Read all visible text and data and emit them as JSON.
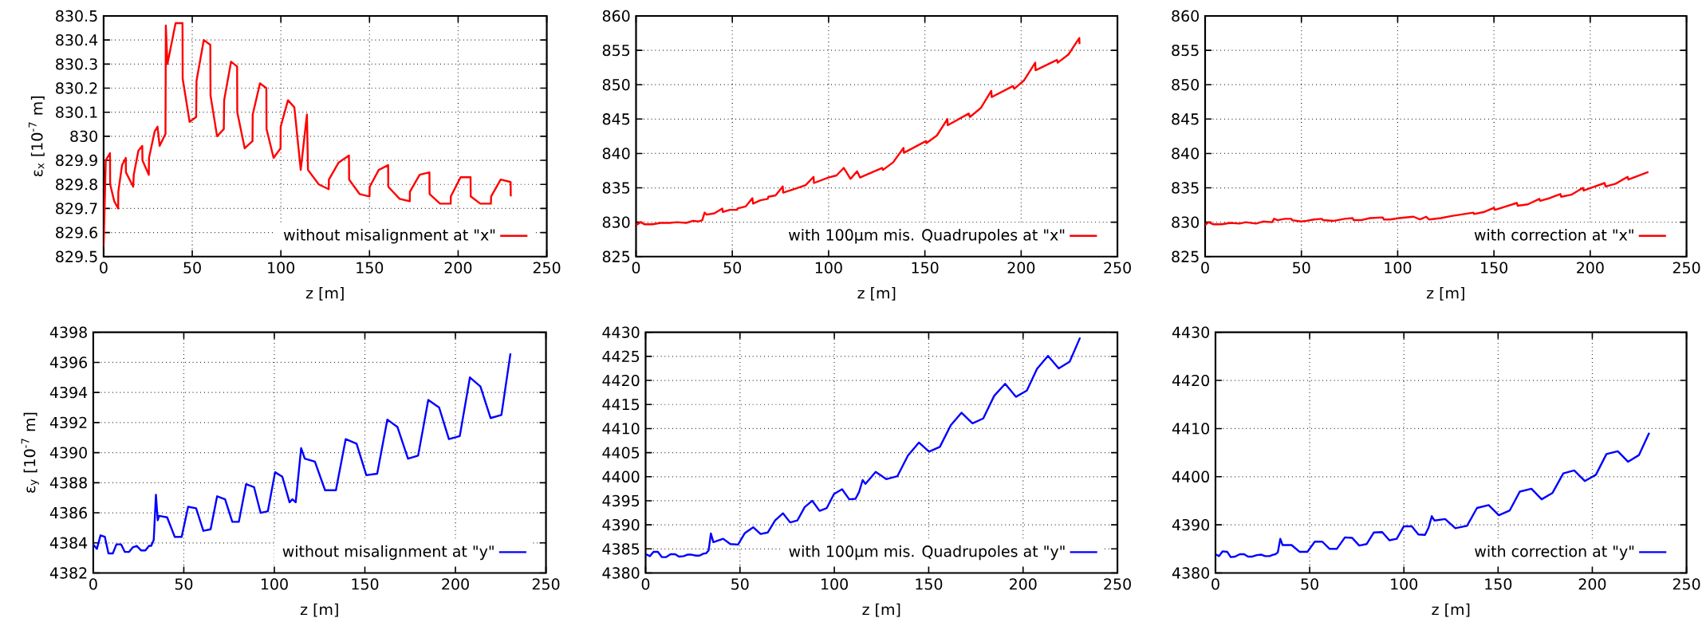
{
  "chart_data": [
    {
      "type": "line",
      "xlabel": "z [m]",
      "ylabel": "ε$_{x}$ [10$^{-7}$ m]",
      "legend": "bottom right",
      "grid": true,
      "xlim": [
        0,
        250
      ],
      "xticks": [
        0,
        50,
        100,
        150,
        200,
        250
      ],
      "ylim": [
        829.5,
        830.5
      ],
      "yticks": [
        829.5,
        829.6,
        829.7,
        829.8,
        829.9,
        830,
        830.1,
        830.2,
        830.3,
        830.4,
        830.5
      ],
      "series": [
        {
          "name": "without misalignment at \"x\"",
          "color": "#ff0000",
          "x": [
            0,
            1.2,
            2,
            3.6,
            3.7,
            6,
            8.2,
            8.3,
            10.4,
            12.5,
            12.6,
            16.7,
            17,
            19.6,
            21.8,
            21.9,
            25.5,
            25.6,
            28.8,
            30.4,
            31.6,
            34.9,
            35.1,
            36,
            40.6,
            44.5,
            44.6,
            48.5,
            52.2,
            52.4,
            56.5,
            60.2,
            60.3,
            64,
            67.8,
            68,
            71.9,
            75.3,
            75.4,
            79.6,
            84,
            84.1,
            88.2,
            91.8,
            91.9,
            95.9,
            99.8,
            99.9,
            104,
            107.6,
            111.2,
            114.7,
            115.3,
            121.4,
            127,
            127.1,
            132.5,
            138.4,
            138.5,
            144.4,
            150,
            150.1,
            155.2,
            160.5,
            160.6,
            167,
            172.7,
            172.8,
            178.3,
            183.8,
            183.9,
            189.8,
            195.8,
            195.9,
            201.4,
            207,
            207.1,
            212.5,
            218.5,
            218.6,
            224,
            229.6,
            229.7
          ],
          "values": [
            829.54,
            829.9,
            829.91,
            829.93,
            829.8,
            829.73,
            829.7,
            829.77,
            829.88,
            829.91,
            829.85,
            829.79,
            829.84,
            829.94,
            829.96,
            829.9,
            829.84,
            829.91,
            830.02,
            830.04,
            829.96,
            830.01,
            830.46,
            830.3,
            830.47,
            830.47,
            830.24,
            830.06,
            830.08,
            830.23,
            830.4,
            830.38,
            830.17,
            830,
            830.03,
            830.15,
            830.31,
            830.29,
            830.1,
            829.95,
            829.98,
            830.09,
            830.22,
            830.2,
            830.03,
            829.91,
            829.95,
            830.04,
            830.15,
            830.12,
            829.86,
            830.09,
            829.86,
            829.8,
            829.78,
            829.82,
            829.89,
            829.92,
            829.82,
            829.76,
            829.75,
            829.79,
            829.86,
            829.88,
            829.79,
            829.74,
            829.73,
            829.77,
            829.84,
            829.85,
            829.76,
            829.72,
            829.72,
            829.75,
            829.83,
            829.83,
            829.75,
            829.72,
            829.72,
            829.75,
            829.82,
            829.81,
            829.75
          ]
        }
      ]
    },
    {
      "type": "line",
      "xlabel": "z [m]",
      "legend": "bottom right",
      "grid": true,
      "xlim": [
        0,
        250
      ],
      "xticks": [
        0,
        50,
        100,
        150,
        200,
        250
      ],
      "ylim": [
        825,
        860
      ],
      "yticks": [
        825,
        830,
        835,
        840,
        845,
        850,
        855,
        860
      ],
      "series": [
        {
          "name": "with 100μm mis. Quadrupoles at \"x\"",
          "color": "#ff0000",
          "x": [
            0,
            2.4,
            4.3,
            8.5,
            12.8,
            17.5,
            21.3,
            26,
            29.7,
            32.2,
            34.4,
            35.6,
            36.7,
            40.7,
            44.8,
            45,
            48.8,
            52.5,
            52.7,
            57,
            60.4,
            60.8,
            64.6,
            68.4,
            68.7,
            72.5,
            76.2,
            76.4,
            84,
            88.1,
            92.2,
            92.4,
            99.9,
            104.1,
            107.9,
            111.4,
            114.8,
            116.3,
            127.8,
            128.2,
            133.5,
            138.9,
            139.1,
            150.6,
            150.8,
            156.2,
            161.7,
            161.9,
            172.8,
            173.4,
            179,
            184.5,
            184.7,
            195.8,
            196.4,
            201.4,
            207.3,
            207.5,
            218.6,
            219,
            224.6,
            230.2,
            230.3
          ],
          "values": [
            829.6,
            830,
            829.7,
            829.7,
            829.9,
            829.9,
            830,
            829.9,
            830.2,
            830.1,
            830.3,
            831.4,
            831.1,
            831.3,
            832,
            831.5,
            831.8,
            831.8,
            832,
            832.3,
            833.5,
            832.7,
            833.2,
            833.4,
            833.7,
            833.9,
            835.2,
            834.3,
            835,
            835.4,
            836.6,
            835.7,
            836.5,
            836.8,
            837.9,
            836.3,
            837.4,
            836.5,
            837.9,
            837.6,
            838.7,
            840.8,
            840.1,
            841.8,
            841.5,
            842.6,
            845,
            844.1,
            845.8,
            845.3,
            846.6,
            849.1,
            848.2,
            849.8,
            849.4,
            850.6,
            853.2,
            852.1,
            853.6,
            853.2,
            854.4,
            856.8,
            855.9
          ]
        }
      ]
    },
    {
      "type": "line",
      "xlabel": "z [m]",
      "legend": "bottom right",
      "grid": true,
      "xlim": [
        0,
        250
      ],
      "xticks": [
        0,
        50,
        100,
        150,
        200,
        250
      ],
      "ylim": [
        825,
        860
      ],
      "yticks": [
        825,
        830,
        835,
        840,
        845,
        850,
        855,
        860
      ],
      "series": [
        {
          "name": "with correction at \"x\"",
          "color": "#ff0000",
          "x": [
            0,
            1.9,
            4.1,
            8.5,
            13.2,
            17.9,
            21.1,
            26.4,
            30.1,
            34.8,
            35.8,
            37.7,
            41.4,
            44.8,
            45.2,
            49.9,
            52.7,
            56.5,
            60.6,
            61.2,
            66.8,
            68.7,
            72.5,
            76.6,
            77.1,
            80.9,
            85.6,
            92.2,
            92.8,
            96,
            100.7,
            108.2,
            111.6,
            114.8,
            116.3,
            122.4,
            128,
            139.3,
            139.7,
            145,
            150,
            150.6,
            161.9,
            162.3,
            167.6,
            173.6,
            174,
            178.9,
            184.5,
            184.9,
            190.2,
            196.2,
            196.6,
            201.5,
            207.5,
            207.9,
            213.2,
            219.4,
            219.8,
            230.2
          ],
          "values": [
            829.6,
            830,
            829.7,
            829.7,
            829.9,
            829.8,
            830,
            829.8,
            830.1,
            830,
            830.5,
            830.3,
            830.5,
            830.5,
            830.3,
            830.1,
            830.2,
            830.4,
            830.5,
            830.3,
            830.2,
            830.3,
            830.5,
            830.6,
            830.3,
            830.3,
            830.6,
            830.7,
            830.4,
            830.4,
            830.6,
            830.8,
            830.4,
            830.8,
            830.4,
            830.6,
            830.9,
            831.4,
            831.2,
            831.5,
            832.1,
            831.8,
            832.8,
            832.4,
            832.6,
            833.4,
            833.1,
            833.5,
            834.1,
            833.7,
            834,
            835,
            834.6,
            835.1,
            835.7,
            835.2,
            835.6,
            836.6,
            836.2,
            837.3
          ]
        }
      ]
    },
    {
      "type": "line",
      "xlabel": "z [m]",
      "ylabel": "ε$_{y}$ [10$^{-7}$ m]",
      "legend": "bottom right",
      "grid": true,
      "xlim": [
        0,
        250
      ],
      "xticks": [
        0,
        50,
        100,
        150,
        200,
        250
      ],
      "ylim": [
        4382,
        4398
      ],
      "yticks": [
        4382,
        4384,
        4386,
        4388,
        4390,
        4392,
        4394,
        4396,
        4398
      ],
      "series": [
        {
          "name": "without misalignment at \"y\"",
          "color": "#0000ff",
          "x": [
            0,
            2,
            4,
            6.4,
            8.4,
            10.8,
            12.8,
            15.4,
            17.4,
            19.8,
            21.8,
            24,
            26.4,
            28.8,
            30.8,
            32,
            33.4,
            34.6,
            35.6,
            36.4,
            40.8,
            45,
            48.8,
            52.4,
            56.8,
            60.8,
            64.8,
            68.4,
            72.8,
            76.8,
            80.4,
            84.4,
            88.8,
            92.4,
            96.4,
            100.4,
            104.4,
            108.4,
            110,
            111.8,
            114.8,
            116.8,
            122.4,
            128,
            134,
            139.4,
            145.4,
            150.8,
            156.8,
            162.4,
            168,
            173.8,
            179.4,
            185,
            191,
            196.4,
            202.4,
            208,
            213.8,
            219.4,
            225.4,
            230.4
          ],
          "values": [
            4383.9,
            4383.6,
            4384.5,
            4384.4,
            4383.3,
            4383.3,
            4383.9,
            4383.9,
            4383.4,
            4383.4,
            4383.7,
            4383.8,
            4383.5,
            4383.5,
            4383.8,
            4383.8,
            4384.2,
            4387.2,
            4385.5,
            4385.8,
            4385.7,
            4384.4,
            4384.4,
            4386.4,
            4386.3,
            4384.8,
            4384.9,
            4387.1,
            4386.9,
            4385.4,
            4385.4,
            4387.9,
            4387.7,
            4386,
            4386.1,
            4388.7,
            4388.4,
            4386.7,
            4386.9,
            4386.7,
            4390.3,
            4389.6,
            4389.4,
            4387.5,
            4387.5,
            4390.9,
            4390.6,
            4388.5,
            4388.6,
            4392.2,
            4391.7,
            4389.6,
            4389.8,
            4393.5,
            4393,
            4390.9,
            4391.1,
            4395,
            4394.4,
            4392.3,
            4392.5,
            4396.6
          ]
        }
      ]
    },
    {
      "type": "line",
      "xlabel": "z [m]",
      "legend": "bottom right",
      "grid": true,
      "xlim": [
        0,
        250
      ],
      "xticks": [
        0,
        50,
        100,
        150,
        200,
        250
      ],
      "ylim": [
        4380,
        4430
      ],
      "yticks": [
        4380,
        4385,
        4390,
        4395,
        4400,
        4405,
        4410,
        4415,
        4420,
        4425,
        4430
      ],
      "series": [
        {
          "name": "with 100μm mis. Quadrupoles at \"y\"",
          "color": "#0000ff",
          "x": [
            0,
            2.3,
            4.2,
            6.5,
            8.6,
            10.9,
            13.2,
            15.7,
            17.7,
            20.2,
            22.1,
            24.4,
            26.7,
            28.6,
            30.5,
            32.1,
            33.4,
            34.6,
            35.9,
            41.1,
            44.9,
            49,
            52.6,
            57,
            60.9,
            64.7,
            68.6,
            72.8,
            76.6,
            80.4,
            84.3,
            88.3,
            92.2,
            96,
            99.8,
            104.1,
            107.9,
            111.2,
            113.1,
            115,
            116.5,
            121.9,
            127.5,
            133.4,
            139,
            144.8,
            150.2,
            155.9,
            161.7,
            167.4,
            173.2,
            178.9,
            184.7,
            190.5,
            196.2,
            202,
            207.4,
            213.2,
            218.9,
            224.7,
            230.2
          ],
          "values": [
            4383.9,
            4383.5,
            4384.4,
            4384.4,
            4383.3,
            4383.3,
            4383.9,
            4383.9,
            4383.4,
            4383.5,
            4383.8,
            4383.8,
            4383.6,
            4383.6,
            4384,
            4384.1,
            4384.7,
            4388.2,
            4386.4,
            4387.1,
            4386,
            4385.9,
            4388.3,
            4389.5,
            4388.1,
            4388.4,
            4390.9,
            4392.4,
            4390.5,
            4390.9,
            4393.7,
            4395,
            4392.9,
            4393.5,
            4396.4,
            4397.4,
            4395.3,
            4395.4,
            4396.8,
            4399.3,
            4398.5,
            4401,
            4399.5,
            4400.1,
            4404.4,
            4407.1,
            4405.2,
            4406.2,
            4410.7,
            4413.3,
            4411.1,
            4412.1,
            4416.8,
            4419.3,
            4416.6,
            4417.9,
            4422.4,
            4425.1,
            4422.5,
            4423.9,
            4428.9
          ]
        }
      ]
    },
    {
      "type": "line",
      "xlabel": "z [m]",
      "legend": "bottom right",
      "grid": true,
      "xlim": [
        0,
        250
      ],
      "xticks": [
        0,
        50,
        100,
        150,
        200,
        250
      ],
      "ylim": [
        4380,
        4430
      ],
      "yticks": [
        4380,
        4390,
        4400,
        4410,
        4420,
        4430
      ],
      "series": [
        {
          "name": "with correction at \"y\"",
          "color": "#0000ff",
          "x": [
            0,
            1.9,
            3.8,
            6.2,
            8.1,
            10.4,
            12.9,
            15.2,
            17.3,
            19.6,
            21.9,
            24.4,
            26.3,
            28.7,
            30.6,
            31.9,
            33.1,
            34.4,
            35.6,
            40.4,
            44.6,
            48.8,
            52.7,
            56.7,
            60.6,
            64.4,
            68.7,
            72.5,
            76.3,
            80.2,
            84,
            88.5,
            92.3,
            96.2,
            100,
            104.2,
            107.7,
            111.2,
            113.1,
            114.8,
            116.2,
            121.9,
            127.3,
            133.5,
            138.8,
            145,
            150.4,
            156.2,
            161.5,
            167.7,
            173.1,
            178.8,
            184.6,
            190.4,
            196,
            201.9,
            207.5,
            213.5,
            219,
            224.8,
            230.2
          ],
          "values": [
            4383.9,
            4383.5,
            4384.5,
            4384.4,
            4383.3,
            4383.4,
            4383.9,
            4383.9,
            4383.4,
            4383.4,
            4383.7,
            4383.8,
            4383.5,
            4383.5,
            4383.8,
            4383.9,
            4384.3,
            4387.1,
            4385.8,
            4385.8,
            4384.4,
            4384.4,
            4386.5,
            4386.5,
            4385,
            4385,
            4387.4,
            4387.3,
            4385.7,
            4386,
            4388.4,
            4388.5,
            4386.8,
            4387.1,
            4389.7,
            4389.7,
            4388,
            4387.9,
            4389.4,
            4391.8,
            4390.9,
            4391.2,
            4389.3,
            4389.8,
            4393.5,
            4394.1,
            4392,
            4393,
            4396.9,
            4397.5,
            4395.3,
            4396.6,
            4400.7,
            4401.3,
            4399.1,
            4400.4,
            4404.7,
            4405.3,
            4403.1,
            4404.5,
            4409.1
          ]
        }
      ]
    }
  ]
}
